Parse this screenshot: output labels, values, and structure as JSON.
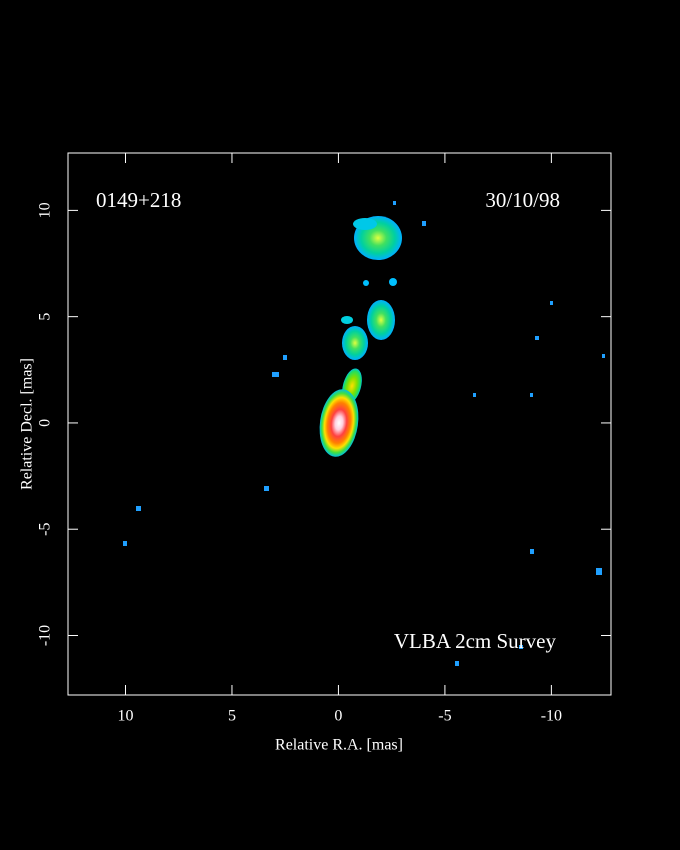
{
  "chart_data": {
    "type": "image",
    "xlabel": "Relative R.A. [mas]",
    "ylabel": "Relative Decl. [mas]",
    "annotations": [
      "0149+218",
      "30/10/98",
      "VLBA 2cm Survey"
    ],
    "xlim": [
      12.7,
      -12.8
    ],
    "ylim": [
      -12.8,
      12.7
    ],
    "xticks": [
      10,
      5,
      0,
      -5,
      -10
    ],
    "yticks": [
      -10,
      -5,
      0,
      5,
      10
    ]
  }
}
